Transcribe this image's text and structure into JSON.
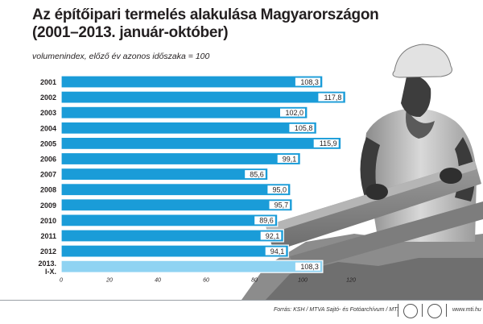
{
  "header": {
    "title_line1": "Az építőipari termelés alakulása Magyarországon",
    "title_line2": "(2001–2013. január-október)",
    "subtitle": "volumenindex, előző év azonos időszaka = 100"
  },
  "footer": {
    "source": "Forrás: KSH / MTVA Sajtó- és Fotóarchívum / MTI",
    "site": "www.mti.hu"
  },
  "colors": {
    "bar_main": "#1a9cd8",
    "bar_last": "#8fd3f2",
    "bar_border": "#ffffff",
    "label_bg": "#ffffff",
    "text": "#231f20"
  },
  "chart_data": {
    "type": "bar",
    "orientation": "horizontal",
    "categories": [
      "2001",
      "2002",
      "2003",
      "2004",
      "2005",
      "2006",
      "2007",
      "2008",
      "2009",
      "2010",
      "2011",
      "2012",
      "2013.\nI-X."
    ],
    "values": [
      108.3,
      117.8,
      102.0,
      105.8,
      115.9,
      99.1,
      85.6,
      95.0,
      95.7,
      89.6,
      92.1,
      94.1,
      108.3
    ],
    "value_labels": [
      "108,3",
      "117,8",
      "102,0",
      "105,8",
      "115,9",
      "99,1",
      "85,6",
      "95,0",
      "95,7",
      "89,6",
      "92,1",
      "94,1",
      "108,3"
    ],
    "xlim": [
      0,
      120
    ],
    "xticks": [
      0,
      20,
      40,
      60,
      80,
      100,
      120
    ],
    "xtick_labels": [
      "0",
      "20",
      "40",
      "60",
      "80",
      "100",
      "120"
    ],
    "highlight_index": 12
  }
}
